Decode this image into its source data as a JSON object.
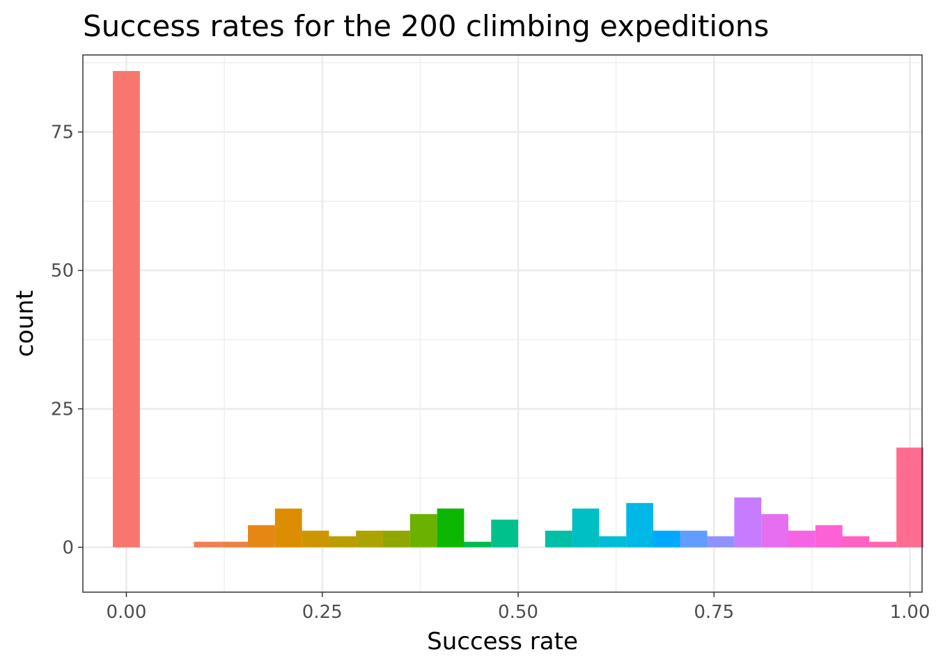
{
  "chart_data": {
    "type": "bar",
    "title": "Success rates for the 200 climbing expeditions",
    "xlabel": "Success rate",
    "ylabel": "count",
    "xlim": [
      -0.0555,
      1.0155
    ],
    "ylim": [
      -8.1,
      88.9
    ],
    "x_ticks": [
      {
        "value": 0.0,
        "label": "0.00"
      },
      {
        "value": 0.25,
        "label": "0.25"
      },
      {
        "value": 0.5,
        "label": "0.50"
      },
      {
        "value": 0.75,
        "label": "0.75"
      },
      {
        "value": 1.0,
        "label": "1.00"
      }
    ],
    "y_ticks": [
      {
        "value": 0,
        "label": "0"
      },
      {
        "value": 25,
        "label": "25"
      },
      {
        "value": 50,
        "label": "50"
      },
      {
        "value": 75,
        "label": "75"
      }
    ],
    "x_minor": [
      0.125,
      0.375,
      0.625,
      0.875
    ],
    "y_minor": [
      12.5,
      37.5,
      62.5,
      87.5
    ],
    "grid": true,
    "bin_width": 0.0345,
    "bins": [
      {
        "x": 0.0,
        "count": 86,
        "color": "#f8766d"
      },
      {
        "x": 0.1034,
        "count": 1,
        "color": "#f27d52"
      },
      {
        "x": 0.1379,
        "count": 1,
        "color": "#ee8043"
      },
      {
        "x": 0.1724,
        "count": 4,
        "color": "#e68613"
      },
      {
        "x": 0.2069,
        "count": 7,
        "color": "#dc8e00"
      },
      {
        "x": 0.2414,
        "count": 3,
        "color": "#cd9600"
      },
      {
        "x": 0.2759,
        "count": 2,
        "color": "#bb9d00"
      },
      {
        "x": 0.3103,
        "count": 3,
        "color": "#aba300"
      },
      {
        "x": 0.3448,
        "count": 3,
        "color": "#8fa700"
      },
      {
        "x": 0.3793,
        "count": 6,
        "color": "#6bb100"
      },
      {
        "x": 0.4138,
        "count": 7,
        "color": "#0cb702"
      },
      {
        "x": 0.4483,
        "count": 1,
        "color": "#00bb4e"
      },
      {
        "x": 0.4828,
        "count": 5,
        "color": "#00c08b"
      },
      {
        "x": 0.5517,
        "count": 3,
        "color": "#00bfa5"
      },
      {
        "x": 0.5862,
        "count": 7,
        "color": "#00bfc4"
      },
      {
        "x": 0.6207,
        "count": 2,
        "color": "#00bcd8"
      },
      {
        "x": 0.6552,
        "count": 8,
        "color": "#00b8e7"
      },
      {
        "x": 0.6897,
        "count": 3,
        "color": "#00a9ff"
      },
      {
        "x": 0.7241,
        "count": 3,
        "color": "#619cff"
      },
      {
        "x": 0.7586,
        "count": 2,
        "color": "#8f91ff"
      },
      {
        "x": 0.7931,
        "count": 9,
        "color": "#c77cff"
      },
      {
        "x": 0.8276,
        "count": 6,
        "color": "#e56ff0"
      },
      {
        "x": 0.8621,
        "count": 3,
        "color": "#f564e3"
      },
      {
        "x": 0.8966,
        "count": 4,
        "color": "#fc61d5"
      },
      {
        "x": 0.931,
        "count": 2,
        "color": "#ff61c3"
      },
      {
        "x": 0.9655,
        "count": 1,
        "color": "#ff64b0"
      },
      {
        "x": 1.0,
        "count": 18,
        "color": "#ff6c91"
      }
    ]
  }
}
